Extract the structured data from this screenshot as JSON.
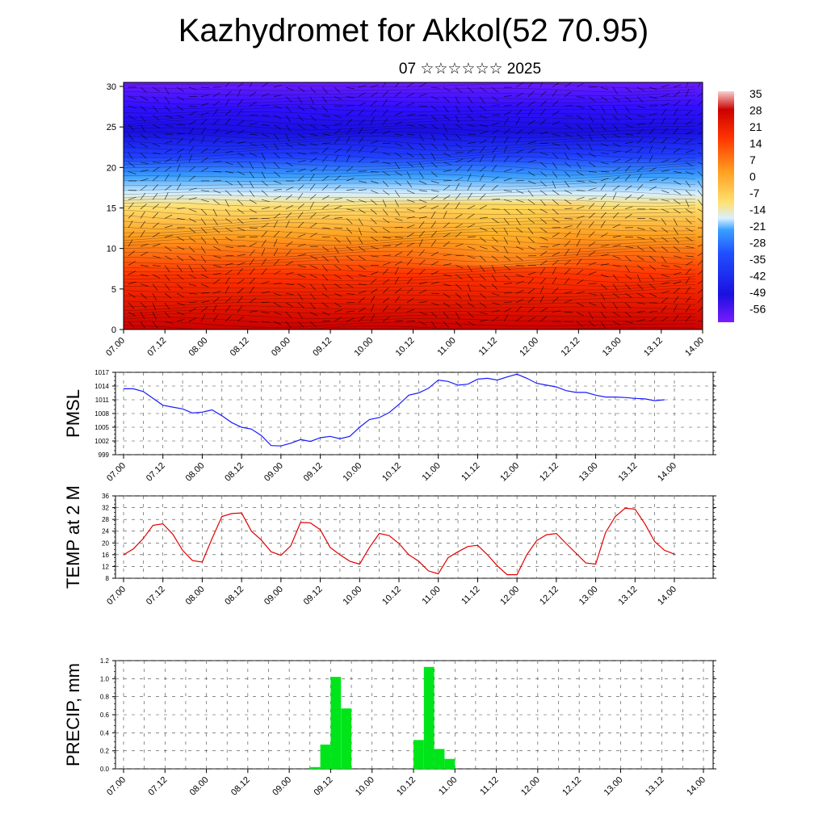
{
  "page": {
    "title": "Kazhydromet for Akkol(52 70.95)",
    "subtitle": "07 ☆☆☆☆☆☆ 2025"
  },
  "colors": {
    "pressure_line": "#1a1aff",
    "temperature_line": "#e00000",
    "precip_bars": "#00e51a",
    "grid": "#333333"
  },
  "chart_data": [
    {
      "type": "heatmap",
      "name": "cross-section",
      "x_ticks": [
        "07.00",
        "07.12",
        "08.00",
        "08.12",
        "09.00",
        "09.12",
        "10.00",
        "10.12",
        "11.00",
        "11.12",
        "12.00",
        "12.12",
        "13.00",
        "13.12",
        "14.00"
      ],
      "y_ticks": [
        "0",
        "5",
        "10",
        "15",
        "20",
        "25",
        "30"
      ],
      "ylim": [
        0,
        30.5
      ],
      "colorbar_labels": [
        "35",
        "28",
        "21",
        "14",
        "7",
        "0",
        "-7",
        "-14",
        "-21",
        "-28",
        "-35",
        "-42",
        "-49",
        "-56"
      ],
      "colorbar_range": [
        -63,
        42
      ]
    },
    {
      "type": "line",
      "ylabel": "PMSL",
      "x_ticks": [
        "07.00",
        "07.12",
        "08.00",
        "08.12",
        "09.00",
        "09.12",
        "10.00",
        "10.12",
        "11.00",
        "11.12",
        "12.00",
        "12.12",
        "13.00",
        "13.12",
        "14.00"
      ],
      "y_ticks": [
        "1017",
        "1014",
        "1011",
        "1008",
        "1005",
        "1002",
        "999"
      ],
      "ylim": [
        999,
        1017
      ],
      "x_hours": [
        0,
        3,
        6,
        9,
        12,
        15,
        18,
        21,
        24,
        27,
        30,
        33,
        36,
        39,
        42,
        45,
        48,
        51,
        54,
        57,
        60,
        63,
        66,
        69,
        72,
        75,
        78,
        81,
        84,
        87,
        90,
        93,
        96,
        99,
        102,
        105,
        108,
        111,
        114,
        117,
        120,
        123,
        126,
        129,
        132,
        135,
        138,
        141,
        144,
        147,
        150,
        153,
        156,
        159,
        162,
        165,
        168
      ],
      "values": [
        1013.4,
        1013.4,
        1012.8,
        1011.3,
        1009.8,
        1009.4,
        1009.0,
        1008.1,
        1008.3,
        1008.8,
        1007.5,
        1006.0,
        1005.0,
        1004.6,
        1003.2,
        1001.0,
        1000.9,
        1001.5,
        1002.3,
        1001.9,
        1002.7,
        1003.0,
        1002.5,
        1003.0,
        1005.0,
        1006.7,
        1007.1,
        1008.2,
        1010.0,
        1012.0,
        1012.5,
        1013.5,
        1015.3,
        1015.0,
        1014.2,
        1014.4,
        1015.5,
        1015.7,
        1015.3,
        1016.0,
        1016.6,
        1015.7,
        1014.6,
        1014.2,
        1013.8,
        1013.0,
        1012.6,
        1012.6,
        1012.0,
        1011.6,
        1011.6,
        1011.5,
        1011.3,
        1011.2,
        1010.8,
        1011.0,
        null
      ]
    },
    {
      "type": "line",
      "ylabel": "TEMP at 2 M",
      "x_ticks": [
        "07.00",
        "07.12",
        "08.00",
        "08.12",
        "09.00",
        "09.12",
        "10.00",
        "10.12",
        "11.00",
        "11.12",
        "12.00",
        "12.12",
        "13.00",
        "13.12",
        "14.00"
      ],
      "y_ticks": [
        "36",
        "32",
        "28",
        "24",
        "20",
        "16",
        "12",
        "8"
      ],
      "ylim": [
        8,
        36
      ],
      "x_hours": [
        0,
        3,
        6,
        9,
        12,
        15,
        18,
        21,
        24,
        27,
        30,
        33,
        36,
        39,
        42,
        45,
        48,
        51,
        54,
        57,
        60,
        63,
        66,
        69,
        72,
        75,
        78,
        81,
        84,
        87,
        90,
        93,
        96,
        99,
        102,
        105,
        108,
        111,
        114,
        117,
        120,
        123,
        126,
        129,
        132,
        135,
        138,
        141,
        144,
        147,
        150,
        153,
        156,
        159,
        162,
        165,
        168
      ],
      "values": [
        16.0,
        18.0,
        21.5,
        26.0,
        26.5,
        23.0,
        17.5,
        14.0,
        13.5,
        21.5,
        29.0,
        30.0,
        30.2,
        24.0,
        21.0,
        17.0,
        15.8,
        19.0,
        27.0,
        26.8,
        24.5,
        18.5,
        16.0,
        13.8,
        12.8,
        18.5,
        23.2,
        22.5,
        19.8,
        16.0,
        13.8,
        10.5,
        9.5,
        15.0,
        17.0,
        18.8,
        19.2,
        16.0,
        12.2,
        9.2,
        9.2,
        16.0,
        20.8,
        22.8,
        23.2,
        19.8,
        16.5,
        13.2,
        12.8,
        23.5,
        29.0,
        31.8,
        31.5,
        26.5,
        20.5,
        17.5,
        16.2
      ]
    },
    {
      "type": "bar",
      "ylabel": "PRECIP, mm",
      "x_ticks": [
        "07.00",
        "07.12",
        "08.00",
        "08.12",
        "09.00",
        "09.12",
        "10.00",
        "10.12",
        "11.00",
        "11.12",
        "12.00",
        "12.12",
        "13.00",
        "13.12",
        "14.00"
      ],
      "y_ticks": [
        "1.2",
        "1.0",
        "0.8",
        "0.6",
        "0.4",
        "0.2",
        "0.0"
      ],
      "ylim": [
        0,
        1.2
      ],
      "bar_start_hours": [
        54,
        57,
        60,
        63,
        84,
        87,
        90,
        93
      ],
      "values": [
        0.02,
        0.27,
        1.02,
        0.67,
        0.32,
        1.13,
        0.22,
        0.11
      ]
    }
  ]
}
